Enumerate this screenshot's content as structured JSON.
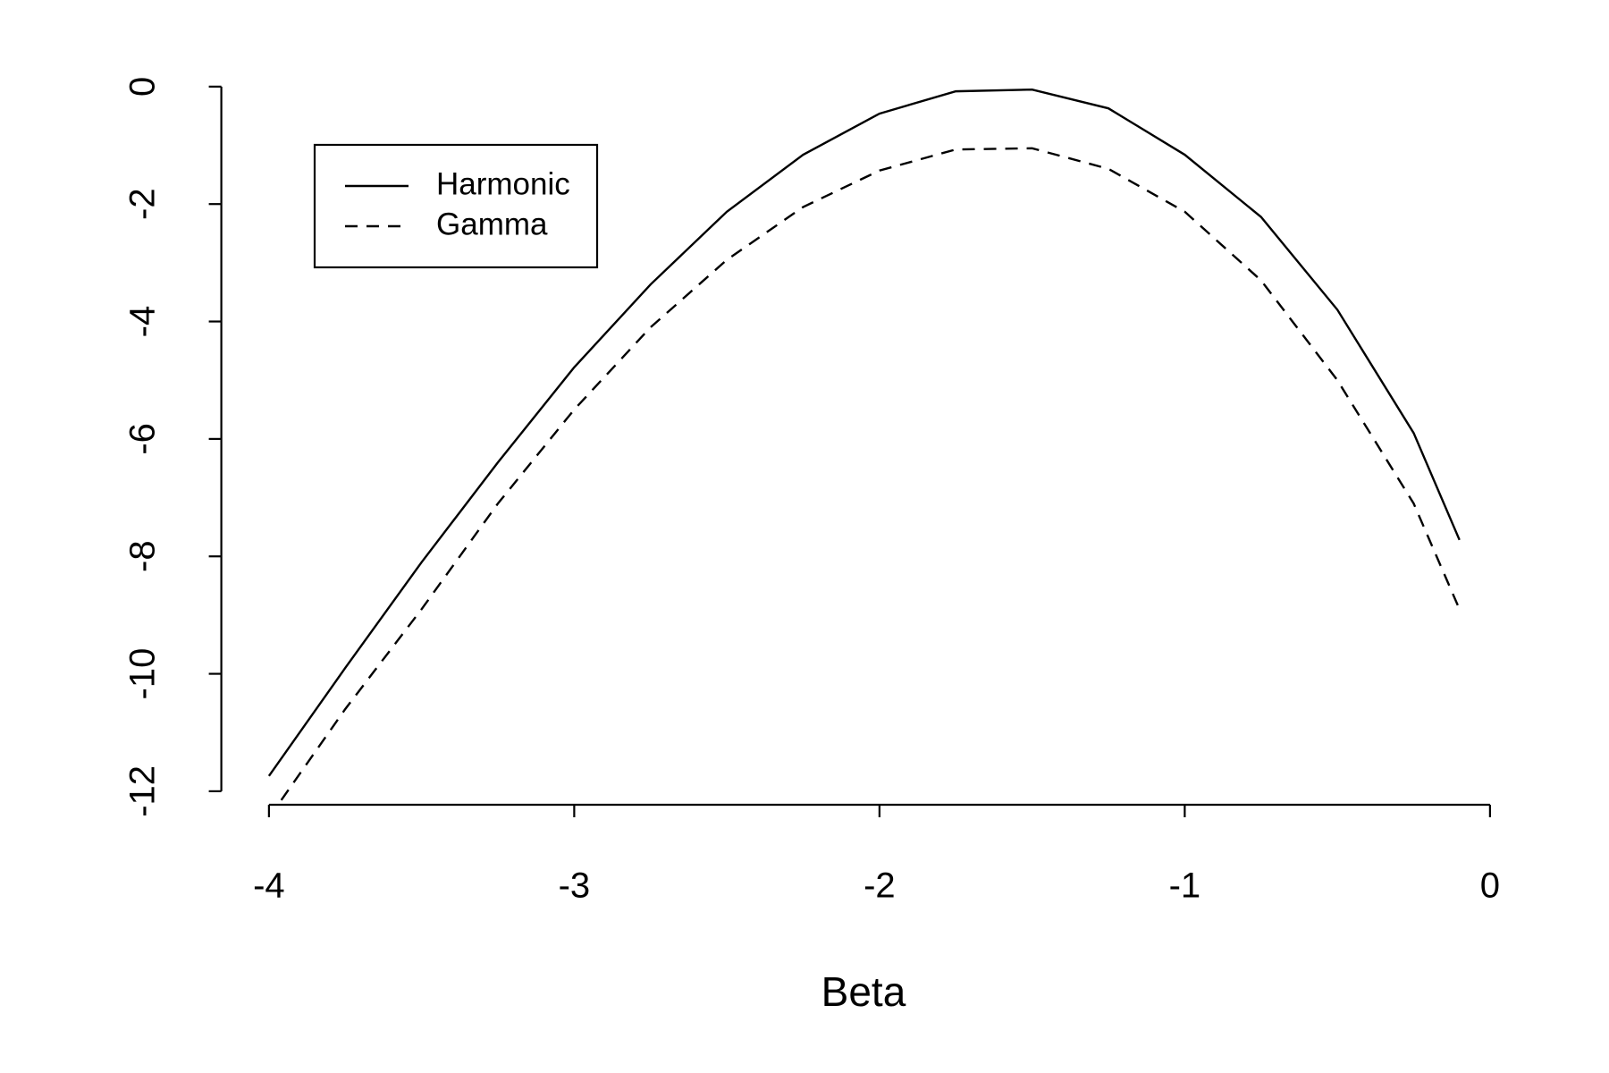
{
  "chart_data": {
    "type": "line",
    "xlabel": "Beta",
    "x": [
      -4,
      -3.75,
      -3.5,
      -3.25,
      -3,
      -2.75,
      -2.5,
      -2.25,
      -2,
      -1.75,
      -1.5,
      -1.25,
      -1,
      -0.75,
      -0.5,
      -0.25,
      -0.1
    ],
    "series": [
      {
        "name": "Harmonic",
        "color": "#000000",
        "dash": "solid",
        "values": [
          -11.74,
          -9.9,
          -8.1,
          -6.4,
          -4.78,
          -3.37,
          -2.13,
          -1.16,
          -0.46,
          -0.08,
          -0.05,
          -0.37,
          -1.16,
          -2.22,
          -3.8,
          -5.9,
          -7.72
        ]
      },
      {
        "name": "Gamma",
        "color": "#000000",
        "dash": "dashed",
        "values": [
          -12.45,
          -10.6,
          -8.9,
          -7.1,
          -5.5,
          -4.1,
          -2.95,
          -2.05,
          -1.43,
          -1.07,
          -1.05,
          -1.4,
          -2.13,
          -3.3,
          -5.0,
          -7.1,
          -8.9
        ]
      }
    ],
    "xlim": [
      -4.156,
      0.056
    ],
    "ylim": [
      -12.23,
      0.47
    ],
    "xticks": [
      -4,
      -3,
      -2,
      -1,
      0
    ],
    "yticks": [
      0,
      -2,
      -4,
      -6,
      -8,
      -10,
      -12
    ],
    "grid": false,
    "legend": "top-left"
  }
}
